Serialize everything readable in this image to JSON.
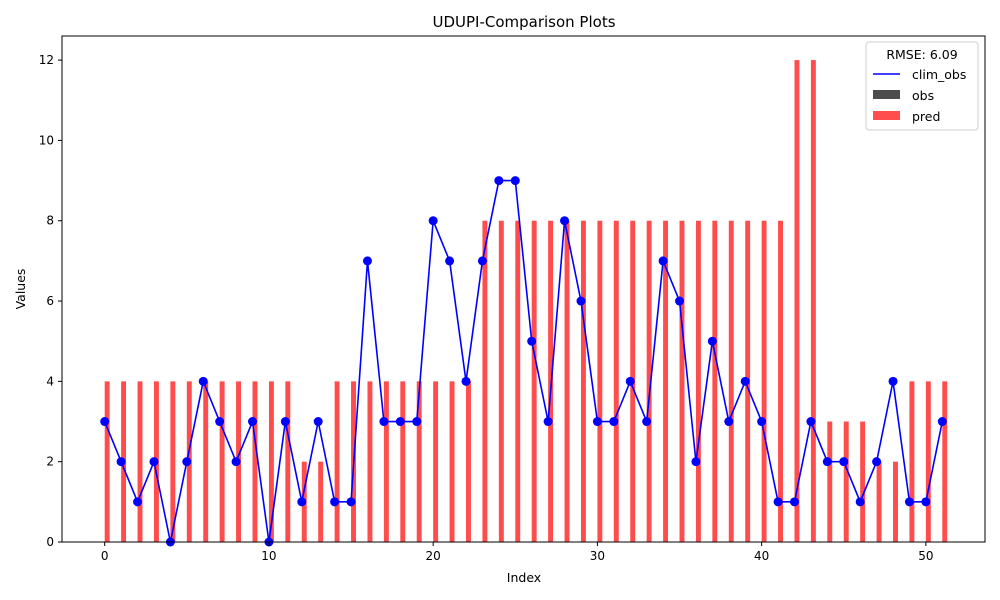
{
  "chart_data": {
    "type": "bar",
    "title": "UDUPI-Comparison Plots",
    "xlabel": "Index",
    "ylabel": "Values",
    "xlim": [
      -2.6,
      53.6
    ],
    "ylim": [
      0,
      12.6
    ],
    "xticks": [
      0,
      10,
      20,
      30,
      40,
      50
    ],
    "yticks": [
      0,
      2,
      4,
      6,
      8,
      10,
      12
    ],
    "grid": false,
    "legend": {
      "title": "RMSE: 6.09",
      "placement": "top-right",
      "entries": [
        {
          "label": "clim_obs",
          "kind": "line",
          "color": "#0000ff"
        },
        {
          "label": "obs",
          "kind": "bar",
          "color": "#4d4d4d"
        },
        {
          "label": "pred",
          "kind": "bar",
          "color": "#ff4d4d"
        }
      ]
    },
    "x": [
      0,
      1,
      2,
      3,
      4,
      5,
      6,
      7,
      8,
      9,
      10,
      11,
      12,
      13,
      14,
      15,
      16,
      17,
      18,
      19,
      20,
      21,
      22,
      23,
      24,
      25,
      26,
      27,
      28,
      29,
      30,
      31,
      32,
      33,
      34,
      35,
      36,
      37,
      38,
      39,
      40,
      41,
      42,
      43,
      44,
      45,
      46,
      47,
      48,
      49,
      50,
      51
    ],
    "series": [
      {
        "name": "clim_obs",
        "kind": "line",
        "color": "#0000ff",
        "values": [
          3,
          2,
          1,
          2,
          0,
          2,
          4,
          3,
          2,
          3,
          0,
          3,
          1,
          3,
          1,
          1,
          7,
          3,
          3,
          3,
          8,
          7,
          4,
          7,
          9,
          9,
          5,
          3,
          8,
          6,
          3,
          3,
          4,
          3,
          7,
          6,
          2,
          5,
          3,
          4,
          3,
          1,
          1,
          3,
          2,
          2,
          1,
          2,
          4,
          1,
          1,
          3
        ]
      },
      {
        "name": "obs",
        "kind": "bar",
        "color": "#4d4d4d",
        "values": [
          0,
          0,
          0,
          0,
          0,
          0,
          0,
          0,
          0,
          0,
          0,
          0,
          0,
          0,
          0,
          0,
          0,
          0,
          0,
          0,
          0,
          0,
          0,
          0,
          0,
          0,
          0,
          0,
          0,
          0,
          0,
          0,
          0,
          0,
          0,
          0,
          0,
          0,
          0,
          0,
          0,
          0,
          0,
          0,
          0,
          0,
          0,
          0,
          0,
          0,
          0,
          0
        ]
      },
      {
        "name": "pred",
        "kind": "bar",
        "color": "#ff4d4d",
        "values": [
          4,
          4,
          4,
          4,
          4,
          4,
          4,
          4,
          4,
          4,
          4,
          4,
          2,
          2,
          4,
          4,
          4,
          4,
          4,
          4,
          4,
          4,
          4,
          8,
          8,
          8,
          8,
          8,
          8,
          8,
          8,
          8,
          8,
          8,
          8,
          8,
          8,
          8,
          8,
          8,
          8,
          8,
          12,
          12,
          3,
          3,
          3,
          2,
          2,
          4,
          4,
          4
        ]
      }
    ]
  }
}
